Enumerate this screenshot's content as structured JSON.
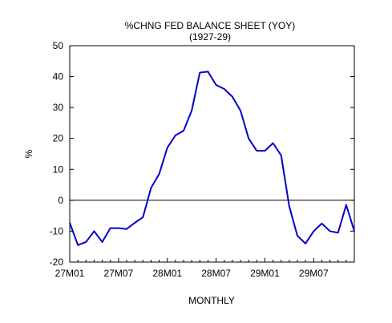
{
  "chart_data": {
    "type": "line",
    "title": "%CHNG FED BALANCE SHEET (YOY)",
    "subtitle": "(1927-29)",
    "xlabel": "MONTHLY",
    "ylabel": "%",
    "ylim": [
      -20,
      50
    ],
    "yticks": [
      -20,
      -10,
      0,
      10,
      20,
      30,
      40,
      50
    ],
    "xtick_labels": [
      "27M01",
      "27M07",
      "28M01",
      "28M07",
      "29M01",
      "29M07"
    ],
    "grid": false,
    "zero_line": true,
    "line_color": "#0000cc",
    "x": [
      "27M01",
      "27M02",
      "27M03",
      "27M04",
      "27M05",
      "27M06",
      "27M07",
      "27M08",
      "27M09",
      "27M10",
      "27M11",
      "27M12",
      "28M01",
      "28M02",
      "28M03",
      "28M04",
      "28M05",
      "28M06",
      "28M07",
      "28M08",
      "28M09",
      "28M10",
      "28M11",
      "28M12",
      "29M01",
      "29M02",
      "29M03",
      "29M04",
      "29M05",
      "29M06",
      "29M07",
      "29M08",
      "29M09",
      "29M10",
      "29M11",
      "29M12"
    ],
    "series": [
      {
        "values": [
          -7.3,
          -14.5,
          -13.5,
          -10.0,
          -13.5,
          -9.0,
          -9.0,
          -9.3,
          -7.3,
          -5.5,
          4.0,
          8.5,
          17.0,
          21.0,
          22.5,
          29.0,
          41.3,
          41.6,
          37.3,
          36.0,
          33.5,
          29.0,
          20.0,
          16.0,
          16.0,
          18.5,
          14.5,
          -2.0,
          -11.5,
          -14.0,
          -10.0,
          -7.5,
          -10.0,
          -10.5,
          -1.5,
          -10.0
        ]
      }
    ]
  }
}
